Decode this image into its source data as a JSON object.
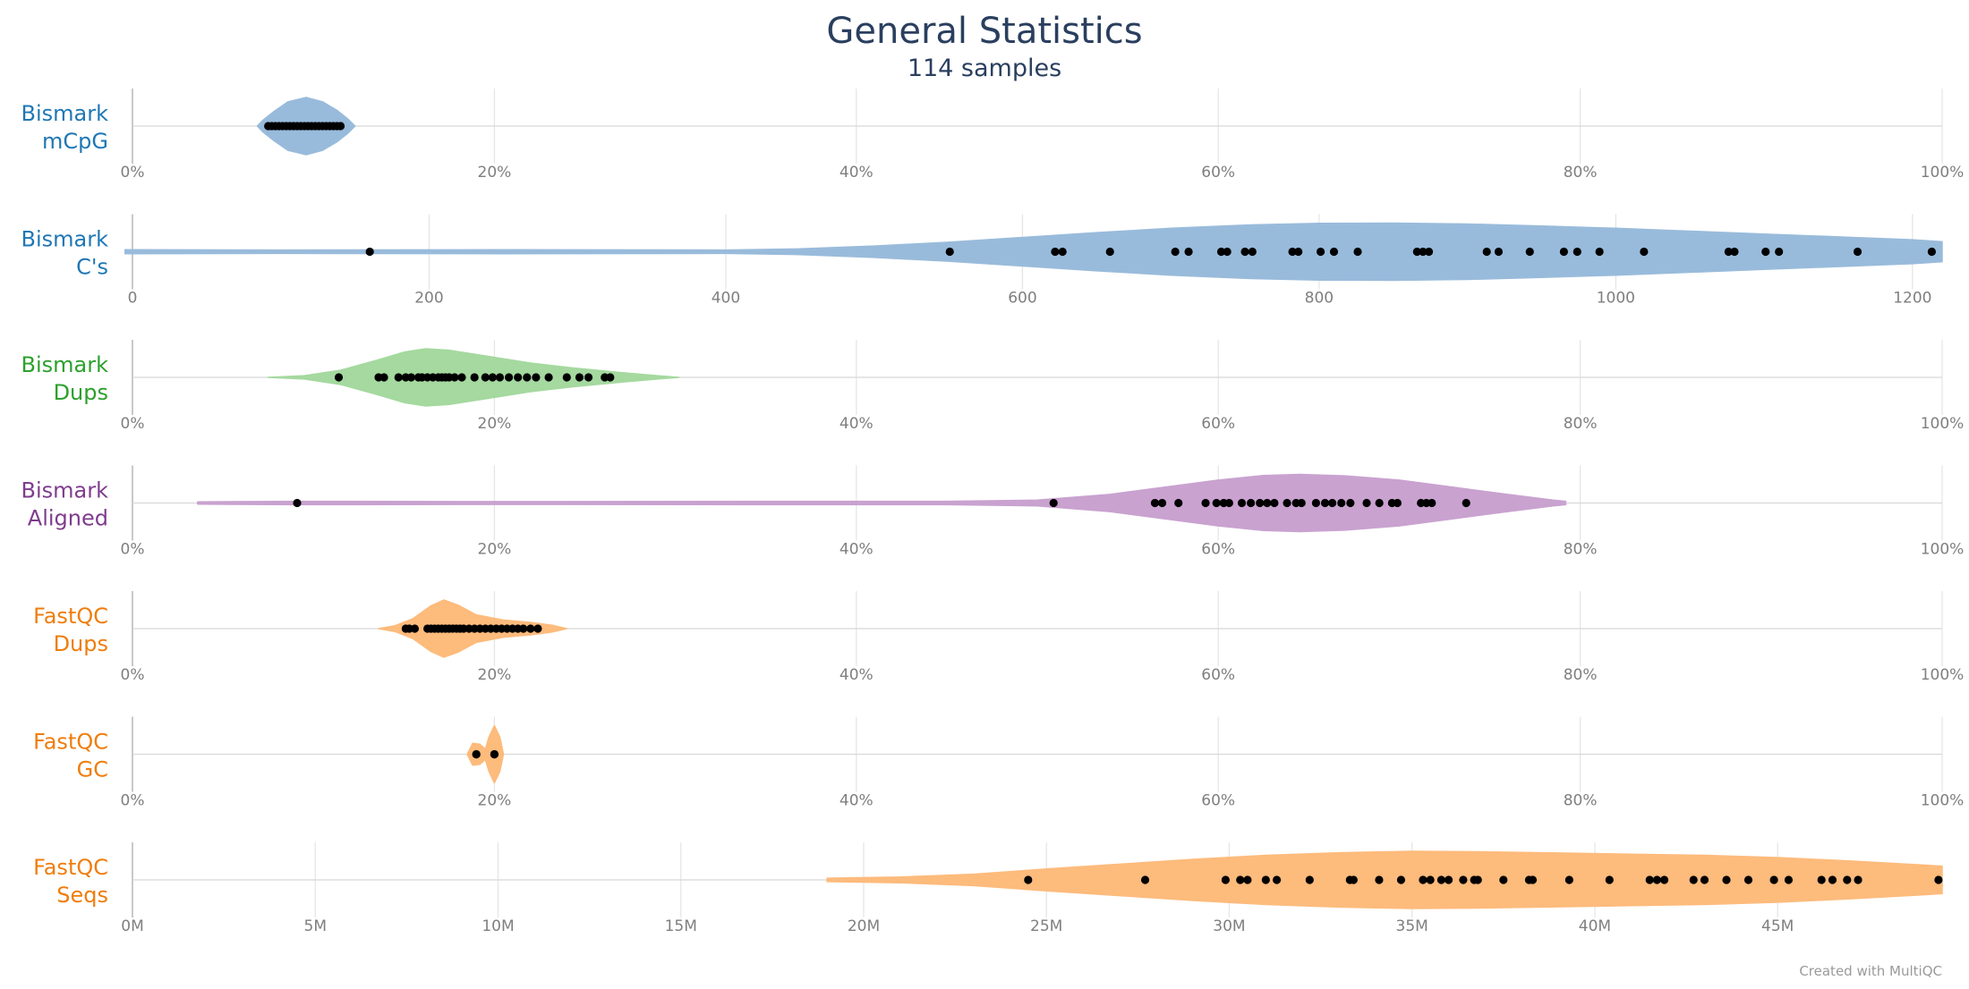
{
  "chart_data": {
    "type": "violin",
    "title": "General Statistics",
    "subtitle": "114 samples",
    "credit": "Created with MultiQC",
    "grid": true,
    "panels": [
      {
        "name": "mcpg",
        "label_lines": [
          "Bismark",
          "mCpG"
        ],
        "color": "#1f77b4",
        "fill": "#99bbdb",
        "axis": {
          "min": 0,
          "max": 100,
          "ticks": [
            0,
            20,
            40,
            60,
            80,
            100
          ],
          "tick_labels": [
            "0%",
            "20%",
            "40%",
            "60%",
            "80%",
            "100%"
          ]
        },
        "violin": [
          [
            6.9,
            0
          ],
          [
            7.2,
            0.2
          ],
          [
            7.8,
            0.5
          ],
          [
            8.6,
            0.85
          ],
          [
            9.6,
            1.0
          ],
          [
            10.5,
            0.85
          ],
          [
            11.3,
            0.55
          ],
          [
            11.9,
            0.25
          ],
          [
            12.3,
            0
          ]
        ],
        "points": [
          7.5,
          7.7,
          7.9,
          8.1,
          8.3,
          8.5,
          8.7,
          8.9,
          9.1,
          9.3,
          9.5,
          9.7,
          9.9,
          10.1,
          10.3,
          10.5,
          10.7,
          10.9,
          11.1,
          11.3,
          11.5
        ]
      },
      {
        "name": "cs",
        "label_lines": [
          "Bismark",
          "C's"
        ],
        "color": "#1f77b4",
        "fill": "#99bbdb",
        "axis": {
          "min": 0,
          "max": 1220,
          "ticks": [
            0,
            200,
            400,
            600,
            800,
            1000,
            1200
          ],
          "tick_labels": [
            "0",
            "200",
            "400",
            "600",
            "800",
            "1000",
            "1200"
          ]
        },
        "violin": [
          [
            -5,
            0.07
          ],
          [
            100,
            0.06
          ],
          [
            250,
            0.07
          ],
          [
            400,
            0.06
          ],
          [
            450,
            0.1
          ],
          [
            500,
            0.2
          ],
          [
            550,
            0.33
          ],
          [
            600,
            0.5
          ],
          [
            650,
            0.67
          ],
          [
            700,
            0.82
          ],
          [
            750,
            0.93
          ],
          [
            800,
            0.99
          ],
          [
            850,
            1.0
          ],
          [
            900,
            0.97
          ],
          [
            950,
            0.9
          ],
          [
            1000,
            0.82
          ],
          [
            1050,
            0.72
          ],
          [
            1100,
            0.62
          ],
          [
            1150,
            0.52
          ],
          [
            1200,
            0.42
          ],
          [
            1220,
            0.35
          ]
        ],
        "points": [
          160,
          551,
          622,
          627,
          659,
          703,
          712,
          734,
          738,
          750,
          755,
          782,
          786,
          801,
          810,
          826,
          866,
          870,
          874,
          913,
          921,
          942,
          965,
          974,
          989,
          1019,
          1076,
          1080,
          1101,
          1110,
          1163,
          1213
        ]
      },
      {
        "name": "bismark_dups",
        "label_lines": [
          "Bismark",
          "Dups"
        ],
        "color": "#2ca02c",
        "fill": "#a5d99f",
        "axis": {
          "min": 0,
          "max": 100,
          "ticks": [
            0,
            20,
            40,
            60,
            80,
            100
          ],
          "tick_labels": [
            "0%",
            "20%",
            "40%",
            "60%",
            "80%",
            "100%"
          ]
        },
        "violin": [
          [
            7.5,
            0
          ],
          [
            9.5,
            0.06
          ],
          [
            11.5,
            0.25
          ],
          [
            13.5,
            0.6
          ],
          [
            15,
            0.88
          ],
          [
            16.2,
            1.0
          ],
          [
            17.5,
            0.95
          ],
          [
            19.5,
            0.75
          ],
          [
            22,
            0.5
          ],
          [
            24.5,
            0.32
          ],
          [
            27,
            0.17
          ],
          [
            29,
            0.06
          ],
          [
            30.2,
            0
          ]
        ],
        "points": [
          11.4,
          13.6,
          13.9,
          14.7,
          15.1,
          15.4,
          15.8,
          16.0,
          16.3,
          16.6,
          16.9,
          17.1,
          17.3,
          17.5,
          17.8,
          18.2,
          18.9,
          19.5,
          19.9,
          20.3,
          20.8,
          21.3,
          21.8,
          22.3,
          23.0,
          24.0,
          24.7,
          25.2,
          26.1,
          26.4
        ]
      },
      {
        "name": "aligned",
        "label_lines": [
          "Bismark",
          "Aligned"
        ],
        "color": "#7f3c8d",
        "fill": "#c9a2d0",
        "axis": {
          "min": 0,
          "max": 100,
          "ticks": [
            0,
            20,
            40,
            60,
            80,
            100
          ],
          "tick_labels": [
            "0%",
            "20%",
            "40%",
            "60%",
            "80%",
            "100%"
          ]
        },
        "violin": [
          [
            3.6,
            0.04
          ],
          [
            9,
            0.06
          ],
          [
            20,
            0.05
          ],
          [
            35,
            0.06
          ],
          [
            45,
            0.06
          ],
          [
            50,
            0.1
          ],
          [
            54,
            0.3
          ],
          [
            57,
            0.55
          ],
          [
            60,
            0.8
          ],
          [
            62.5,
            0.96
          ],
          [
            64.5,
            1.0
          ],
          [
            67,
            0.95
          ],
          [
            70,
            0.8
          ],
          [
            73,
            0.55
          ],
          [
            76,
            0.3
          ],
          [
            78.5,
            0.1
          ],
          [
            79.2,
            0.06
          ]
        ],
        "points": [
          9.1,
          50.9,
          56.5,
          56.9,
          57.8,
          59.3,
          59.9,
          60.3,
          60.6,
          61.3,
          61.8,
          62.3,
          62.7,
          63.1,
          63.8,
          64.3,
          64.6,
          65.4,
          65.9,
          66.3,
          66.8,
          67.3,
          68.2,
          68.9,
          69.6,
          69.9,
          71.2,
          71.5,
          71.8,
          73.7
        ]
      },
      {
        "name": "fastqc_dups",
        "label_lines": [
          "FastQC",
          "Dups"
        ],
        "color": "#ef7d0d",
        "fill": "#fdbb7c",
        "axis": {
          "min": 0,
          "max": 100,
          "ticks": [
            0,
            20,
            40,
            60,
            80,
            100
          ],
          "tick_labels": [
            "0%",
            "20%",
            "40%",
            "60%",
            "80%",
            "100%"
          ]
        },
        "violin": [
          [
            13.6,
            0
          ],
          [
            14.5,
            0.1
          ],
          [
            15.5,
            0.35
          ],
          [
            16.5,
            0.8
          ],
          [
            17.2,
            1.0
          ],
          [
            18,
            0.82
          ],
          [
            19,
            0.48
          ],
          [
            20.5,
            0.3
          ],
          [
            22,
            0.22
          ],
          [
            23.2,
            0.12
          ],
          [
            24,
            0
          ]
        ],
        "points": [
          15.1,
          15.3,
          15.6,
          16.3,
          16.5,
          16.7,
          16.9,
          17.1,
          17.3,
          17.5,
          17.7,
          17.9,
          18.1,
          18.3,
          18.6,
          18.9,
          19.2,
          19.5,
          19.8,
          20.1,
          20.4,
          20.7,
          21.0,
          21.3,
          21.6,
          22.0,
          22.4
        ]
      },
      {
        "name": "fastqc_gc",
        "label_lines": [
          "FastQC",
          "GC"
        ],
        "color": "#ef7d0d",
        "fill": "#fdbb7c",
        "axis": {
          "min": 0,
          "max": 100,
          "ticks": [
            0,
            20,
            40,
            60,
            80,
            100
          ],
          "tick_labels": [
            "0%",
            "20%",
            "40%",
            "60%",
            "80%",
            "100%"
          ]
        },
        "violin": [
          [
            18.5,
            0
          ],
          [
            18.8,
            0.38
          ],
          [
            19.2,
            0.35
          ],
          [
            19.5,
            0.18
          ],
          [
            19.7,
            0.6
          ],
          [
            20.0,
            1.0
          ],
          [
            20.3,
            0.6
          ],
          [
            20.5,
            0
          ]
        ],
        "points": [
          19.0,
          19.0,
          20.0,
          20.0
        ]
      },
      {
        "name": "seqs",
        "label_lines": [
          "FastQC",
          "Seqs"
        ],
        "color": "#ef7d0d",
        "fill": "#fdbb7c",
        "axis": {
          "min": 0,
          "max": 49.5,
          "ticks": [
            0,
            5,
            10,
            15,
            20,
            25,
            30,
            35,
            40,
            45
          ],
          "tick_labels": [
            "0M",
            "5M",
            "10M",
            "15M",
            "20M",
            "25M",
            "30M",
            "35M",
            "40M",
            "45M"
          ]
        },
        "violin": [
          [
            19,
            0.06
          ],
          [
            21,
            0.1
          ],
          [
            23,
            0.2
          ],
          [
            25,
            0.38
          ],
          [
            27,
            0.55
          ],
          [
            29,
            0.72
          ],
          [
            31,
            0.86
          ],
          [
            33,
            0.95
          ],
          [
            35,
            1.0
          ],
          [
            37,
            0.98
          ],
          [
            39,
            0.94
          ],
          [
            41,
            0.9
          ],
          [
            43,
            0.86
          ],
          [
            45,
            0.78
          ],
          [
            47,
            0.66
          ],
          [
            49,
            0.52
          ],
          [
            49.5,
            0.48
          ]
        ],
        "points": [
          24.5,
          27.7,
          29.9,
          30.3,
          30.5,
          31.0,
          31.3,
          32.2,
          33.3,
          33.4,
          34.1,
          34.7,
          35.3,
          35.5,
          35.8,
          36.0,
          36.4,
          36.7,
          36.8,
          37.5,
          38.2,
          38.3,
          39.3,
          40.4,
          41.5,
          41.7,
          41.9,
          42.7,
          43.0,
          43.6,
          44.2,
          44.9,
          45.3,
          46.2,
          46.5,
          46.9,
          47.2,
          49.4
        ]
      }
    ]
  }
}
